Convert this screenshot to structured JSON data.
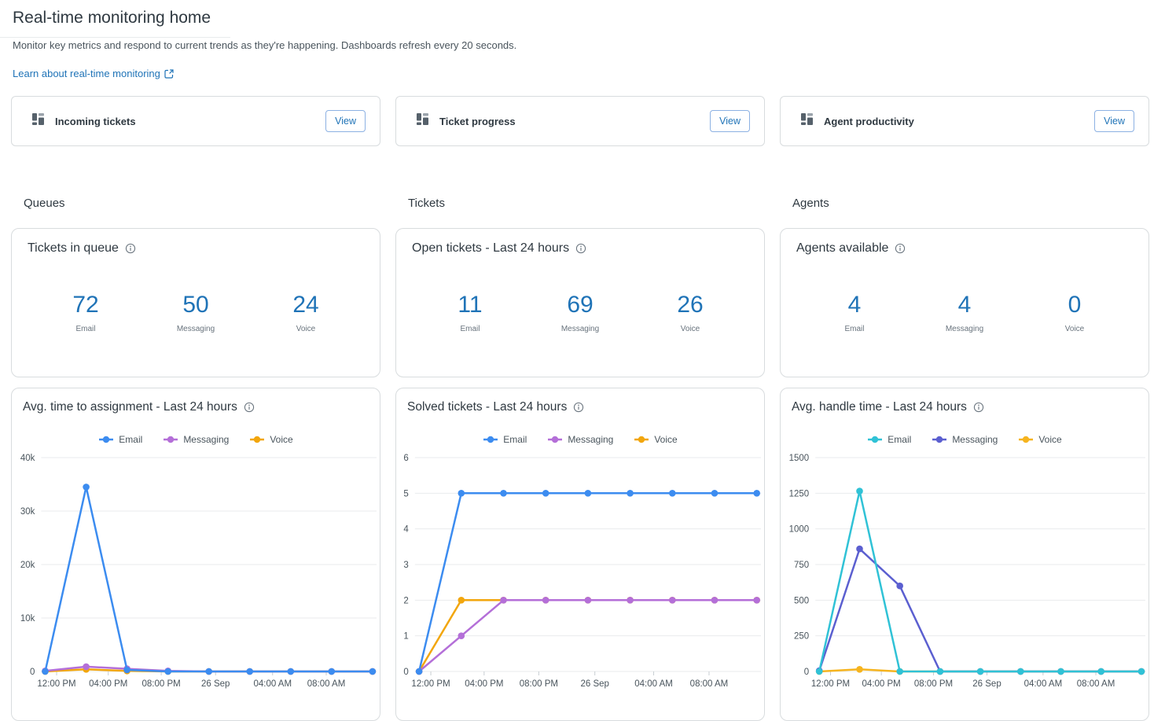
{
  "page": {
    "title": "Real-time monitoring home",
    "subtitle": "Monitor key metrics and respond to current trends as they're happening. Dashboards refresh every 20 seconds.",
    "learn_link": "Learn about real-time monitoring"
  },
  "colors": {
    "link_blue": "#1f73b7",
    "metric_blue": "#1f73b7",
    "card_border": "#d8dcde",
    "gridline": "#e9ebed",
    "text_dark": "#2f3941",
    "text_body": "#49545c",
    "text_muted": "#68737d"
  },
  "nav_cards": [
    {
      "label": "Incoming tickets",
      "button": "View"
    },
    {
      "label": "Ticket progress",
      "button": "View"
    },
    {
      "label": "Agent productivity",
      "button": "View"
    }
  ],
  "columns": [
    {
      "header": "Queues",
      "stat_card": {
        "title": "Tickets in queue",
        "metrics": [
          {
            "value": "72",
            "label": "Email"
          },
          {
            "value": "50",
            "label": "Messaging"
          },
          {
            "value": "24",
            "label": "Voice"
          }
        ]
      },
      "chart_card": {
        "title": "Avg. time to assignment - Last 24 hours",
        "chart_data": {
          "type": "line",
          "x_tick_labels": [
            "12:00 PM",
            "04:00 PM",
            "08:00 PM",
            "26 Sep",
            "04:00 AM",
            "08:00 AM"
          ],
          "y_tick_labels": [
            "0",
            "10k",
            "20k",
            "30k",
            "40k"
          ],
          "ylim": [
            0,
            40000
          ],
          "grid": true,
          "legend_position": "top",
          "series": [
            {
              "name": "Email",
              "color": "#3c8cf0",
              "values": [
                0,
                34500,
                300,
                0,
                0,
                0,
                0,
                0,
                0
              ]
            },
            {
              "name": "Messaging",
              "color": "#b46fd8",
              "values": [
                100,
                900,
                500,
                100,
                0,
                0,
                0,
                0,
                0
              ]
            },
            {
              "name": "Voice",
              "color": "#f2a60d",
              "values": [
                0,
                400,
                100,
                0,
                0,
                0,
                0,
                0,
                0
              ]
            }
          ]
        }
      }
    },
    {
      "header": "Tickets",
      "stat_card": {
        "title": "Open tickets - Last 24 hours",
        "metrics": [
          {
            "value": "11",
            "label": "Email"
          },
          {
            "value": "69",
            "label": "Messaging"
          },
          {
            "value": "26",
            "label": "Voice"
          }
        ]
      },
      "chart_card": {
        "title": "Solved tickets - Last 24 hours",
        "chart_data": {
          "type": "line",
          "x_tick_labels": [
            "12:00 PM",
            "04:00 PM",
            "08:00 PM",
            "26 Sep",
            "04:00 AM",
            "08:00 AM"
          ],
          "y_tick_labels": [
            "0",
            "1",
            "2",
            "3",
            "4",
            "5",
            "6"
          ],
          "ylim": [
            0,
            6
          ],
          "grid": true,
          "legend_position": "top",
          "series": [
            {
              "name": "Email",
              "color": "#3c8cf0",
              "values": [
                0,
                5,
                5,
                5,
                5,
                5,
                5,
                5,
                5
              ]
            },
            {
              "name": "Messaging",
              "color": "#b46fd8",
              "values": [
                0,
                1,
                2,
                2,
                2,
                2,
                2,
                2,
                2
              ]
            },
            {
              "name": "Voice",
              "color": "#f2a60d",
              "values": [
                0,
                2,
                2,
                2,
                2,
                2,
                2,
                2,
                2
              ]
            }
          ]
        }
      }
    },
    {
      "header": "Agents",
      "stat_card": {
        "title": "Agents available",
        "metrics": [
          {
            "value": "4",
            "label": "Email"
          },
          {
            "value": "4",
            "label": "Messaging"
          },
          {
            "value": "0",
            "label": "Voice"
          }
        ]
      },
      "chart_card": {
        "title": "Avg. handle time - Last 24 hours",
        "chart_data": {
          "type": "line",
          "x_tick_labels": [
            "12:00 PM",
            "04:00 PM",
            "08:00 PM",
            "26 Sep",
            "04:00 AM",
            "08:00 AM"
          ],
          "y_tick_labels": [
            "0",
            "250",
            "500",
            "750",
            "1000",
            "1250",
            "1500"
          ],
          "ylim": [
            0,
            1500
          ],
          "grid": true,
          "legend_position": "top",
          "series": [
            {
              "name": "Email",
              "color": "#30c2d6",
              "values": [
                0,
                1265,
                0,
                0,
                0,
                0,
                0,
                0,
                0
              ]
            },
            {
              "name": "Messaging",
              "color": "#5b5fd0",
              "values": [
                5,
                860,
                600,
                0,
                0,
                0,
                0,
                0,
                0
              ]
            },
            {
              "name": "Voice",
              "color": "#f6b41f",
              "values": [
                0,
                15,
                0,
                0,
                0,
                0,
                0,
                0,
                0
              ]
            }
          ]
        }
      }
    }
  ]
}
